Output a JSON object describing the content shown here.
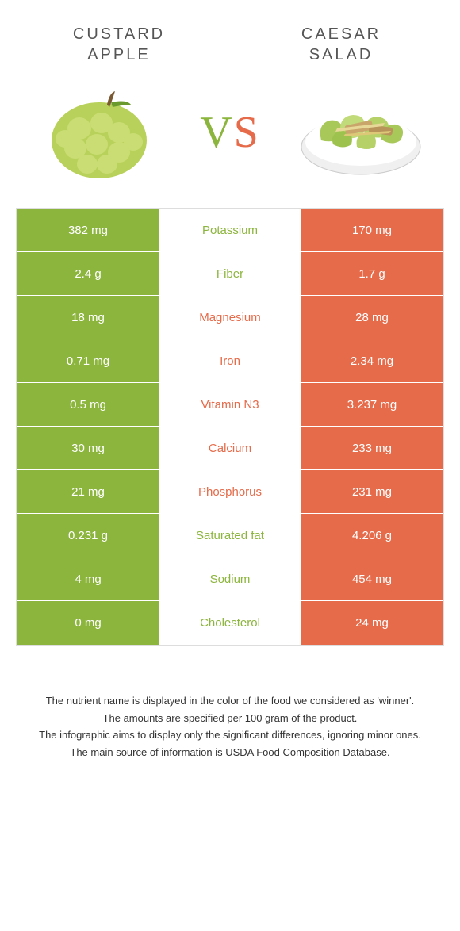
{
  "left_title": "CUSTARD\nAPPLE",
  "right_title": "CAESAR\nSALAD",
  "vs_v": "V",
  "vs_s": "S",
  "colors": {
    "green": "#8cb53e",
    "orange": "#e66b4a",
    "mid_green_text": "#8cb53e",
    "mid_orange_text": "#e66b4a"
  },
  "rows": [
    {
      "left": "382 mg",
      "nutrient": "Potassium",
      "right": "170 mg",
      "winner": "left"
    },
    {
      "left": "2.4 g",
      "nutrient": "Fiber",
      "right": "1.7 g",
      "winner": "left"
    },
    {
      "left": "18 mg",
      "nutrient": "Magnesium",
      "right": "28 mg",
      "winner": "right"
    },
    {
      "left": "0.71 mg",
      "nutrient": "Iron",
      "right": "2.34 mg",
      "winner": "right"
    },
    {
      "left": "0.5 mg",
      "nutrient": "Vitamin N3",
      "right": "3.237 mg",
      "winner": "right"
    },
    {
      "left": "30 mg",
      "nutrient": "Calcium",
      "right": "233 mg",
      "winner": "right"
    },
    {
      "left": "21 mg",
      "nutrient": "Phosphorus",
      "right": "231 mg",
      "winner": "right"
    },
    {
      "left": "0.231 g",
      "nutrient": "Saturated fat",
      "right": "4.206 g",
      "winner": "left"
    },
    {
      "left": "4 mg",
      "nutrient": "Sodium",
      "right": "454 mg",
      "winner": "left"
    },
    {
      "left": "0 mg",
      "nutrient": "Cholesterol",
      "right": "24 mg",
      "winner": "left"
    }
  ],
  "footer": [
    "The nutrient name is displayed in the color of the food we considered as 'winner'.",
    "The amounts are specified per 100 gram of the product.",
    "The infographic aims to display only the significant differences, ignoring minor ones.",
    "The main source of information is USDA Food Composition Database."
  ]
}
